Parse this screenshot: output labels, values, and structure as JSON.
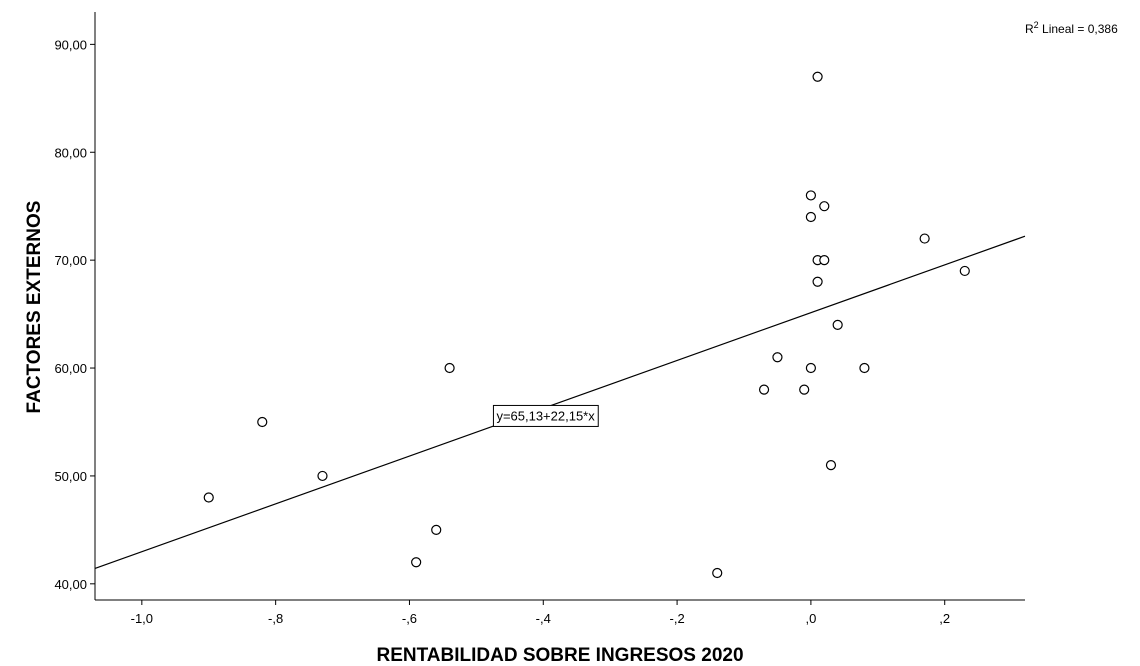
{
  "chart_data": {
    "type": "scatter",
    "xlabel": "RENTABILIDAD SOBRE INGRESOS 2020",
    "ylabel": "FACTORES EXTERNOS",
    "xlim": [
      -1.07,
      0.32
    ],
    "ylim": [
      38.5,
      93
    ],
    "x_ticks": [
      {
        "value": -1.0,
        "label": "-1,0"
      },
      {
        "value": -0.8,
        "label": "-,8"
      },
      {
        "value": -0.6,
        "label": "-,6"
      },
      {
        "value": -0.4,
        "label": "-,4"
      },
      {
        "value": -0.2,
        "label": "-,2"
      },
      {
        "value": 0.0,
        "label": ",0"
      },
      {
        "value": 0.2,
        "label": ",2"
      }
    ],
    "y_ticks": [
      {
        "value": 40,
        "label": "40,00"
      },
      {
        "value": 50,
        "label": "50,00"
      },
      {
        "value": 60,
        "label": "60,00"
      },
      {
        "value": 70,
        "label": "70,00"
      },
      {
        "value": 80,
        "label": "80,00"
      },
      {
        "value": 90,
        "label": "90,00"
      }
    ],
    "points": [
      {
        "x": -0.9,
        "y": 48
      },
      {
        "x": -0.82,
        "y": 55
      },
      {
        "x": -0.73,
        "y": 50
      },
      {
        "x": -0.59,
        "y": 42
      },
      {
        "x": -0.56,
        "y": 45
      },
      {
        "x": -0.54,
        "y": 60
      },
      {
        "x": -0.14,
        "y": 41
      },
      {
        "x": -0.07,
        "y": 58
      },
      {
        "x": -0.05,
        "y": 61
      },
      {
        "x": -0.01,
        "y": 58
      },
      {
        "x": 0.0,
        "y": 76
      },
      {
        "x": 0.0,
        "y": 74
      },
      {
        "x": 0.0,
        "y": 60
      },
      {
        "x": 0.01,
        "y": 87
      },
      {
        "x": 0.01,
        "y": 70
      },
      {
        "x": 0.01,
        "y": 68
      },
      {
        "x": 0.02,
        "y": 75
      },
      {
        "x": 0.02,
        "y": 70
      },
      {
        "x": 0.03,
        "y": 51
      },
      {
        "x": 0.04,
        "y": 64
      },
      {
        "x": 0.08,
        "y": 60
      },
      {
        "x": 0.17,
        "y": 72
      },
      {
        "x": 0.23,
        "y": 69
      }
    ],
    "fit_line": {
      "intercept": 65.13,
      "slope": 22.15
    },
    "fit_equation_label": "y=65,13+22,15*x",
    "r2_prefix": "R",
    "r2_superscript": "2",
    "r2_text": " Lineal = 0,386",
    "grid": false
  }
}
